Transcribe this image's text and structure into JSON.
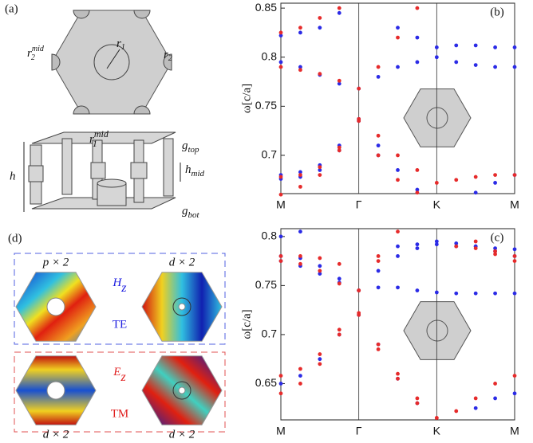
{
  "figure": {
    "panels": [
      "(a)",
      "(d)"
    ],
    "geometry": {
      "r1": {
        "base": "r",
        "sub": "1"
      },
      "r2": {
        "base": "r",
        "sub": "2"
      },
      "r2_mid": {
        "base": "r",
        "sub": "2",
        "sup": "mid"
      },
      "r1_mid": {
        "base": "r",
        "sub": "1",
        "sup": "mid"
      },
      "h": "h",
      "h_mid": {
        "base": "h",
        "sub": "mid"
      },
      "g_top": {
        "base": "g",
        "sub": "top"
      },
      "g_bot": {
        "base": "g",
        "sub": "bot"
      }
    },
    "modes": {
      "top_labels": [
        "p × 2",
        "d × 2"
      ],
      "bottom_labels": [
        "d × 2",
        "d × 2"
      ],
      "te": {
        "field": {
          "base": "H",
          "sub": "z"
        },
        "pol": "TE"
      },
      "tm": {
        "field": {
          "base": "E",
          "sub": "z"
        },
        "pol": "TM"
      }
    }
  },
  "chart_data": [
    {
      "type": "scatter",
      "label": "(b)",
      "ylabel": "ω[c/a]",
      "xlim": [
        0,
        3
      ],
      "xticks": [
        {
          "value": 0,
          "label": "M"
        },
        {
          "value": 1,
          "label": "Γ"
        },
        {
          "value": 2,
          "label": "K"
        },
        {
          "value": 3,
          "label": "M"
        }
      ],
      "ylim": [
        0.661,
        0.855
      ],
      "yticks": [
        0.7,
        0.75,
        0.8,
        0.85
      ],
      "x": [
        0,
        0.25,
        0.5,
        0.75,
        1,
        1.25,
        1.5,
        1.75,
        2,
        2.25,
        2.5,
        2.75,
        3
      ],
      "series": [
        {
          "color": "#2b2be6",
          "values": [
            0.676,
            0.678,
            0.685,
            0.705,
            0.735,
            0.71,
            0.685,
            0.665,
            null,
            null,
            0.662,
            0.672,
            0.68
          ]
        },
        {
          "color": "#2b2be6",
          "values": [
            0.68,
            0.683,
            0.69,
            0.71,
            0.737,
            0.7,
            null,
            null,
            null,
            null,
            null,
            null,
            null
          ]
        },
        {
          "color": "#2b2be6",
          "values": [
            0.795,
            0.79,
            0.782,
            0.773,
            0.768,
            0.78,
            0.79,
            0.795,
            0.8,
            0.795,
            0.792,
            0.79,
            0.79
          ]
        },
        {
          "color": "#2b2be6",
          "values": [
            0.822,
            0.825,
            0.83,
            0.845,
            null,
            null,
            0.83,
            0.82,
            0.81,
            0.812,
            0.812,
            0.81,
            0.81
          ]
        },
        {
          "color": "#e62b2b",
          "values": [
            0.678,
            0.68,
            0.688,
            0.708,
            0.737,
            0.72,
            0.7,
            0.685,
            0.672,
            0.675,
            0.678,
            0.68,
            0.68
          ]
        },
        {
          "color": "#e62b2b",
          "values": [
            0.66,
            0.668,
            0.68,
            0.705,
            0.735,
            0.7,
            0.675,
            0.662,
            null,
            null,
            null,
            null,
            null
          ]
        },
        {
          "color": "#e62b2b",
          "values": [
            0.79,
            0.787,
            0.783,
            0.776,
            0.768,
            0.79,
            0.82,
            0.85,
            null,
            null,
            null,
            null,
            null
          ]
        },
        {
          "color": "#e62b2b",
          "values": [
            0.825,
            0.83,
            0.84,
            0.85,
            null,
            null,
            null,
            null,
            null,
            null,
            null,
            null,
            null
          ]
        }
      ]
    },
    {
      "type": "scatter",
      "label": "(c)",
      "ylabel": "ω[c/a]",
      "xlim": [
        0,
        3
      ],
      "xticks": [
        {
          "value": 0,
          "label": "M"
        },
        {
          "value": 1,
          "label": "Γ"
        },
        {
          "value": 2,
          "label": "K"
        },
        {
          "value": 3,
          "label": "M"
        }
      ],
      "ylim": [
        0.613,
        0.808
      ],
      "yticks": [
        0.65,
        0.7,
        0.75,
        0.8
      ],
      "x": [
        0,
        0.25,
        0.5,
        0.75,
        1,
        1.25,
        1.5,
        1.75,
        2,
        2.25,
        2.5,
        2.75,
        3
      ],
      "series": [
        {
          "color": "#2b2be6",
          "values": [
            0.65,
            0.658,
            0.675,
            0.7,
            0.72,
            0.69,
            0.655,
            0.63,
            null,
            null,
            0.625,
            0.635,
            0.64
          ]
        },
        {
          "color": "#2b2be6",
          "values": [
            0.78,
            0.778,
            0.77,
            0.757,
            0.745,
            0.765,
            0.78,
            0.788,
            0.792,
            0.79,
            0.79,
            0.788,
            0.787
          ]
        },
        {
          "color": "#2b2be6",
          "values": [
            0.775,
            0.77,
            0.762,
            0.753,
            0.745,
            0.748,
            0.748,
            0.745,
            0.743,
            0.742,
            0.742,
            0.742,
            0.742
          ]
        },
        {
          "color": "#2b2be6",
          "values": [
            0.8,
            0.805,
            null,
            null,
            null,
            null,
            0.79,
            0.792,
            0.795,
            0.793,
            0.79,
            0.785,
            0.78
          ]
        },
        {
          "color": "#e62b2b",
          "values": [
            0.658,
            0.665,
            0.68,
            0.705,
            0.722,
            0.69,
            0.66,
            0.635,
            0.615,
            0.622,
            0.635,
            0.65,
            0.658
          ]
        },
        {
          "color": "#e62b2b",
          "values": [
            0.64,
            0.65,
            0.67,
            0.7,
            0.72,
            0.685,
            0.655,
            0.63,
            0.615,
            null,
            null,
            null,
            null
          ]
        },
        {
          "color": "#e62b2b",
          "values": [
            0.775,
            0.772,
            0.765,
            0.752,
            0.745,
            0.775,
            0.805,
            null,
            null,
            null,
            0.795,
            0.785,
            0.78
          ]
        },
        {
          "color": "#e62b2b",
          "values": [
            0.78,
            0.78,
            0.778,
            0.772,
            0.745,
            0.78,
            null,
            null,
            null,
            0.79,
            0.788,
            0.782,
            0.775
          ]
        }
      ]
    }
  ]
}
